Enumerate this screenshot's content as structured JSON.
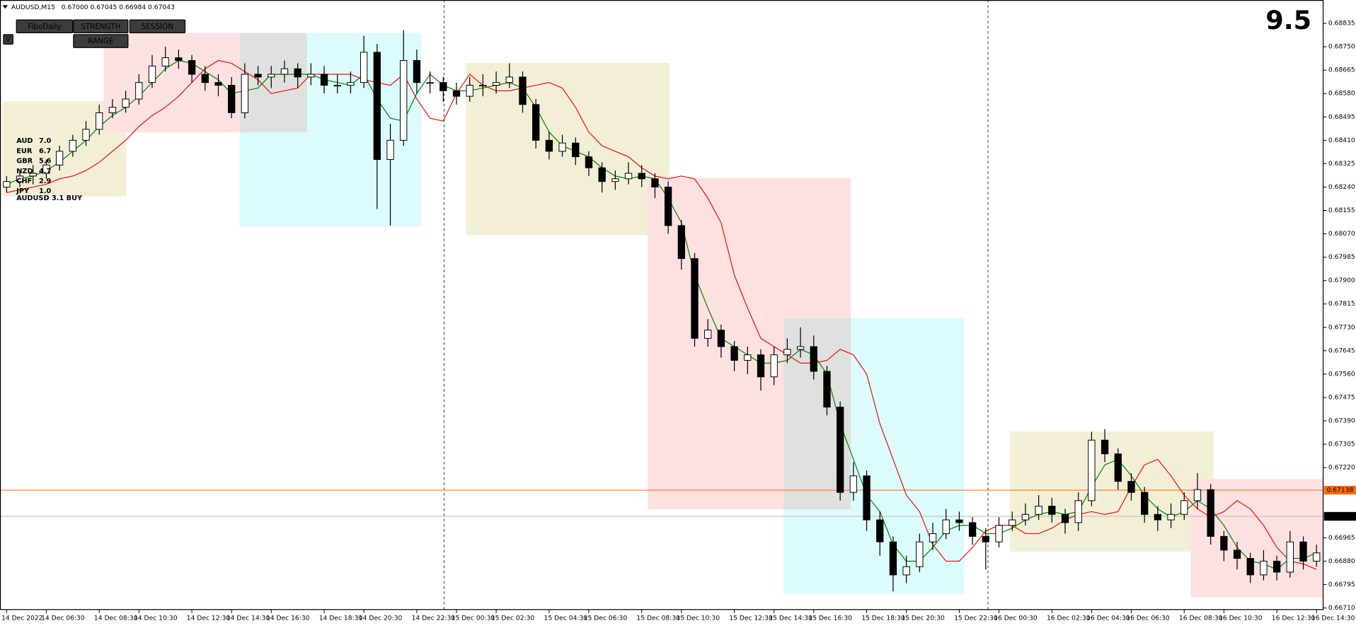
{
  "chart_data": {
    "type": "candlestick",
    "header": {
      "symbol": "AUDUSD,M15",
      "quote": "0.67000 0.67045 0.66984 0.67043"
    },
    "buttons": [
      {
        "label": "FiboDaily",
        "color": "#ff2020"
      },
      {
        "label": "STRENGTH",
        "color": "#20c020"
      },
      {
        "label": "SESSION",
        "color": "#20c020"
      },
      {
        "label": "RANGE",
        "color": "#ff2020"
      },
      {
        "label": "V",
        "color": "#ffffff"
      }
    ],
    "strength": [
      {
        "currency": "AUD",
        "score": "7.0",
        "color": "#33bb33"
      },
      {
        "currency": "EUR",
        "score": "6.7",
        "color": "#33bb33"
      },
      {
        "currency": "GBR",
        "score": "5.6",
        "color": "#66cc33"
      },
      {
        "currency": "NZD",
        "score": "4.7",
        "color": "#3399ff"
      },
      {
        "currency": "CHF",
        "score": "2.9",
        "color": "#3399ff"
      },
      {
        "currency": "JPY",
        "score": "1.0",
        "color": "#ee2222"
      }
    ],
    "signal": {
      "text": "AUDUSD 3.1 BUY",
      "color": "#229922"
    },
    "score": 9.5,
    "score_color": "#ffcc00",
    "categories": [
      "14 Dec 2022",
      null,
      null,
      "14 Dec 06:30",
      null,
      null,
      null,
      "14 Dec 08:30",
      null,
      null,
      "14 Dec 10:30",
      null,
      null,
      null,
      "14 Dec 12:30",
      null,
      null,
      "14 Dec 14:30",
      null,
      null,
      "14 Dec 16:30",
      null,
      null,
      null,
      "14 Dec 18:30",
      null,
      null,
      "14 Dec 20:30",
      null,
      null,
      null,
      "14 Dec 22:30",
      null,
      null,
      "15 Dec 00:30",
      null,
      null,
      "15 Dec 02:30",
      null,
      null,
      null,
      "15 Dec 04:30",
      null,
      null,
      "15 Dec 06:30",
      null,
      null,
      null,
      "15 Dec 08:30",
      null,
      null,
      "15 Dec 10:30",
      null,
      null,
      null,
      "15 Dec 12:30",
      null,
      null,
      "15 Dec 14:30",
      null,
      null,
      "15 Dec 16:30",
      null,
      null,
      null,
      "15 Dec 18:30",
      null,
      null,
      "15 Dec 20:30",
      null,
      null,
      null,
      "15 Dec 22:30",
      null,
      null,
      "16 Dec 00:30",
      null,
      null,
      null,
      "16 Dec 02:30",
      null,
      null,
      "16 Dec 04:30",
      null,
      null,
      "16 Dec 06:30",
      null,
      null,
      null,
      "16 Dec 08:30",
      null,
      null,
      "16 Dec 10:30",
      null,
      null,
      null,
      "16 Dec 12:30",
      null,
      null,
      "16 Dec 14:30"
    ],
    "open": [
      0.6824,
      0.6826,
      0.6828,
      0.6829,
      0.6832,
      0.6837,
      0.6841,
      0.6845,
      0.6851,
      0.6853,
      0.6856,
      0.6862,
      0.6868,
      0.6871,
      0.687,
      0.6865,
      0.6862,
      0.6861,
      0.6851,
      0.6865,
      0.6864,
      0.6865,
      0.6867,
      0.6864,
      0.6865,
      0.6861,
      0.6861,
      0.6862,
      0.6873,
      0.6834,
      0.6841,
      0.687,
      0.6862,
      0.6862,
      0.6859,
      0.6857,
      0.6861,
      0.6861,
      0.6862,
      0.6864,
      0.6854,
      0.6841,
      0.6837,
      0.684,
      0.6835,
      0.6831,
      0.6826,
      0.6827,
      0.6829,
      0.6827,
      0.6824,
      0.681,
      0.6798,
      0.6769,
      0.6772,
      0.6766,
      0.6761,
      0.6763,
      0.6755,
      0.6763,
      0.6765,
      0.6766,
      0.6757,
      0.6744,
      0.6713,
      0.6719,
      0.6703,
      0.6695,
      0.6683,
      0.6686,
      0.6695,
      0.6698,
      0.6703,
      0.6702,
      0.6697,
      0.6695,
      0.6701,
      0.6703,
      0.6705,
      0.6708,
      0.6705,
      0.6702,
      0.671,
      0.6732,
      0.6727,
      0.6717,
      0.6713,
      0.6705,
      0.6703,
      0.6705,
      0.671,
      0.6714,
      0.6697,
      0.6692,
      0.6689,
      0.6683,
      0.6688,
      0.6684,
      0.6695,
      0.6688
    ],
    "high": [
      0.6828,
      0.683,
      0.6832,
      0.6834,
      0.6839,
      0.6843,
      0.6848,
      0.6854,
      0.6856,
      0.6859,
      0.6865,
      0.6872,
      0.6875,
      0.6874,
      0.6872,
      0.6868,
      0.6865,
      0.6864,
      0.6869,
      0.6868,
      0.6868,
      0.687,
      0.6869,
      0.6869,
      0.6868,
      0.6865,
      0.6866,
      0.6879,
      0.6876,
      0.6847,
      0.6881,
      0.6874,
      0.6866,
      0.6864,
      0.6862,
      0.6864,
      0.6865,
      0.6866,
      0.6869,
      0.6866,
      0.6856,
      0.6844,
      0.6843,
      0.6842,
      0.6837,
      0.6833,
      0.683,
      0.6833,
      0.6832,
      0.6829,
      0.6826,
      0.6812,
      0.68,
      0.6776,
      0.6774,
      0.6768,
      0.6766,
      0.6765,
      0.6766,
      0.6769,
      0.6773,
      0.677,
      0.6759,
      0.6746,
      0.6724,
      0.6721,
      0.6706,
      0.6697,
      0.669,
      0.6698,
      0.6702,
      0.6707,
      0.6706,
      0.6704,
      0.67,
      0.6704,
      0.6706,
      0.6709,
      0.6712,
      0.6711,
      0.6707,
      0.6713,
      0.6735,
      0.6736,
      0.6729,
      0.672,
      0.6715,
      0.6708,
      0.6709,
      0.6713,
      0.672,
      0.6716,
      0.6699,
      0.6695,
      0.6691,
      0.6692,
      0.669,
      0.6699,
      0.6697,
      0.6694
    ],
    "low": [
      0.6822,
      0.6824,
      0.6825,
      0.6827,
      0.683,
      0.6835,
      0.6839,
      0.6843,
      0.6849,
      0.6851,
      0.6854,
      0.686,
      0.6866,
      0.6867,
      0.6862,
      0.6859,
      0.6857,
      0.6849,
      0.6849,
      0.6861,
      0.686,
      0.6862,
      0.686,
      0.6861,
      0.6858,
      0.6858,
      0.6858,
      0.686,
      0.6816,
      0.681,
      0.6839,
      0.6858,
      0.6858,
      0.6855,
      0.6854,
      0.6855,
      0.6857,
      0.6858,
      0.686,
      0.6851,
      0.6838,
      0.6834,
      0.6835,
      0.6832,
      0.6828,
      0.6822,
      0.6823,
      0.6825,
      0.6824,
      0.682,
      0.6807,
      0.6794,
      0.6766,
      0.6766,
      0.6762,
      0.6757,
      0.6756,
      0.675,
      0.6752,
      0.676,
      0.6762,
      0.6754,
      0.6741,
      0.671,
      0.671,
      0.6699,
      0.669,
      0.6677,
      0.668,
      0.6684,
      0.6692,
      0.6696,
      0.6699,
      0.6694,
      0.6685,
      0.6693,
      0.6699,
      0.6701,
      0.6703,
      0.6702,
      0.6698,
      0.6699,
      0.6708,
      0.6724,
      0.6714,
      0.671,
      0.6702,
      0.6699,
      0.67,
      0.6703,
      0.6707,
      0.6694,
      0.6688,
      0.6685,
      0.668,
      0.6681,
      0.6681,
      0.6682,
      0.6685,
      0.6686
    ],
    "close": [
      0.6826,
      0.6828,
      0.6829,
      0.6832,
      0.6837,
      0.6841,
      0.6845,
      0.6851,
      0.6853,
      0.6856,
      0.6862,
      0.6868,
      0.6871,
      0.687,
      0.6865,
      0.6862,
      0.6861,
      0.6851,
      0.6865,
      0.6864,
      0.6865,
      0.6867,
      0.6864,
      0.6865,
      0.6861,
      0.6861,
      0.6862,
      0.6873,
      0.6834,
      0.6841,
      0.687,
      0.6862,
      0.6862,
      0.6859,
      0.6857,
      0.6861,
      0.6861,
      0.6862,
      0.6864,
      0.6854,
      0.6841,
      0.6837,
      0.684,
      0.6835,
      0.6831,
      0.6826,
      0.6827,
      0.6829,
      0.6827,
      0.6824,
      0.681,
      0.6798,
      0.6769,
      0.6772,
      0.6766,
      0.6761,
      0.6763,
      0.6755,
      0.6763,
      0.6765,
      0.6766,
      0.6757,
      0.6744,
      0.6713,
      0.6719,
      0.6703,
      0.6695,
      0.6683,
      0.6686,
      0.6695,
      0.6698,
      0.6703,
      0.6702,
      0.6697,
      0.6695,
      0.6701,
      0.6703,
      0.6705,
      0.6708,
      0.6705,
      0.6702,
      0.671,
      0.6732,
      0.6727,
      0.6717,
      0.6713,
      0.6705,
      0.6703,
      0.6705,
      0.671,
      0.6714,
      0.6697,
      0.6692,
      0.6689,
      0.6683,
      0.6688,
      0.6684,
      0.6695,
      0.6688,
      0.6691
    ],
    "series": [
      {
        "color": "#008800",
        "values": [
          0.6825,
          0.6827,
          0.6828,
          0.683,
          0.6833,
          0.6837,
          0.6841,
          0.6846,
          0.685,
          0.6853,
          0.6857,
          0.6862,
          0.6867,
          0.687,
          0.6869,
          0.6866,
          0.6863,
          0.6858,
          0.6859,
          0.686,
          0.6865,
          0.6865,
          0.6865,
          0.6865,
          0.6863,
          0.6862,
          0.6861,
          0.6865,
          0.6856,
          0.6849,
          0.6848,
          0.6858,
          0.6865,
          0.6861,
          0.6859,
          0.6859,
          0.686,
          0.6861,
          0.6862,
          0.686,
          0.6853,
          0.6844,
          0.6839,
          0.6837,
          0.6835,
          0.6831,
          0.6828,
          0.6827,
          0.6828,
          0.6827,
          0.682,
          0.6811,
          0.6792,
          0.678,
          0.6769,
          0.6766,
          0.6763,
          0.676,
          0.676,
          0.6761,
          0.6765,
          0.6763,
          0.6756,
          0.6738,
          0.6725,
          0.6712,
          0.6706,
          0.6694,
          0.6688,
          0.6688,
          0.6693,
          0.6699,
          0.6701,
          0.6701,
          0.6698,
          0.6698,
          0.67,
          0.6703,
          0.6705,
          0.6706,
          0.6705,
          0.6706,
          0.6715,
          0.6723,
          0.6725,
          0.6719,
          0.6712,
          0.6707,
          0.6704,
          0.6706,
          0.671,
          0.6707,
          0.6701,
          0.6693,
          0.6688,
          0.6687,
          0.6685,
          0.6689,
          0.6689,
          0.6691
        ]
      },
      {
        "color": "#ee1111",
        "values": [
          0.6822,
          0.6823,
          0.6824,
          0.6825,
          0.6827,
          0.6828,
          0.683,
          0.6833,
          0.6837,
          0.6841,
          0.6846,
          0.685,
          0.6853,
          0.6857,
          0.6862,
          0.6867,
          0.687,
          0.6869,
          0.6866,
          0.6863,
          0.6858,
          0.6859,
          0.686,
          0.6865,
          0.6865,
          0.6865,
          0.6865,
          0.6863,
          0.6862,
          0.6861,
          0.6865,
          0.6856,
          0.6849,
          0.6848,
          0.6858,
          0.6865,
          0.6861,
          0.6859,
          0.6859,
          0.686,
          0.6861,
          0.6862,
          0.686,
          0.6853,
          0.6844,
          0.6839,
          0.6837,
          0.6835,
          0.6831,
          0.6828,
          0.6827,
          0.6828,
          0.6827,
          0.682,
          0.6811,
          0.6792,
          0.678,
          0.6769,
          0.6766,
          0.6763,
          0.676,
          0.676,
          0.6761,
          0.6765,
          0.6763,
          0.6756,
          0.6738,
          0.6725,
          0.6712,
          0.6706,
          0.6694,
          0.6688,
          0.6688,
          0.6693,
          0.6699,
          0.6701,
          0.6701,
          0.6698,
          0.6698,
          0.67,
          0.6703,
          0.6705,
          0.6706,
          0.6705,
          0.6706,
          0.6715,
          0.6723,
          0.6725,
          0.6719,
          0.6712,
          0.6707,
          0.6704,
          0.6706,
          0.671,
          0.6707,
          0.6701,
          0.6693,
          0.6688,
          0.6687,
          0.6685
        ]
      }
    ],
    "ylim": [
      0.66704,
      0.6892
    ],
    "yticks": [
      0.68835,
      {
        "value": 0.6875,
        "label": "0.68750"
      },
      0.68665,
      {
        "value": 0.6858,
        "label": "0.68580"
      },
      0.68495,
      {
        "value": 0.6841,
        "label": "0.68410"
      },
      0.68325,
      {
        "value": 0.6824,
        "label": "0.68240"
      },
      0.68155,
      {
        "value": 0.6807,
        "label": "0.68070"
      },
      0.67985,
      {
        "value": 0.679,
        "label": "0.67900"
      },
      0.67815,
      {
        "value": 0.6773,
        "label": "0.67730"
      },
      0.67645,
      {
        "value": 0.6756,
        "label": "0.67560"
      },
      0.67475,
      {
        "value": 0.6739,
        "label": "0.67390"
      },
      0.67305,
      {
        "value": 0.6722,
        "label": "0.67220"
      },
      0.66965,
      {
        "value": 0.6688,
        "label": "0.66880"
      },
      0.66795,
      {
        "value": 0.6671,
        "label": "0.66710"
      }
    ],
    "price_lines": [
      {
        "value": 0.67138,
        "color": "#ff6600"
      },
      {
        "value": 0.67043,
        "color": "#c0c0c0"
      }
    ],
    "bull_color": "#ffffff",
    "bear_color": "#000000"
  }
}
